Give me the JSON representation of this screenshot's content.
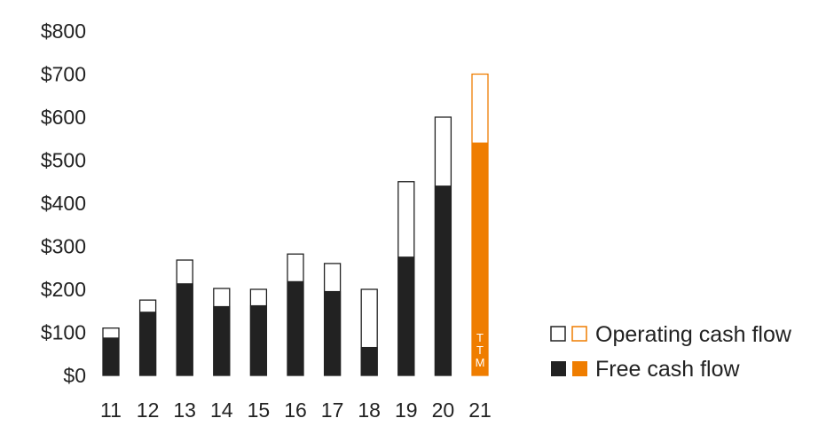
{
  "chart_data": {
    "type": "bar",
    "stacked_overlay": true,
    "categories": [
      "11",
      "12",
      "13",
      "14",
      "15",
      "16",
      "17",
      "18",
      "19",
      "20",
      "21"
    ],
    "series": [
      {
        "name": "Operating cash flow",
        "values": [
          110,
          175,
          268,
          202,
          200,
          282,
          260,
          200,
          450,
          600,
          700
        ]
      },
      {
        "name": "Free cash flow",
        "values": [
          87,
          147,
          213,
          160,
          162,
          218,
          195,
          65,
          275,
          440,
          540
        ]
      }
    ],
    "highlight_category": "21",
    "highlight_label": [
      "T",
      "T",
      "M"
    ],
    "ylim": [
      0,
      800
    ],
    "yticks": [
      0,
      100,
      200,
      300,
      400,
      500,
      600,
      700,
      800
    ],
    "ytick_labels": [
      "$0",
      "$100",
      "$200",
      "$300",
      "$400",
      "$500",
      "$600",
      "$700",
      "$800"
    ],
    "grid": false,
    "legend_position": "bottom-right",
    "colors": {
      "operating_outline": "#222222",
      "free_fill": "#222222",
      "highlight": "#ef7d00",
      "background": "#ffffff"
    }
  }
}
